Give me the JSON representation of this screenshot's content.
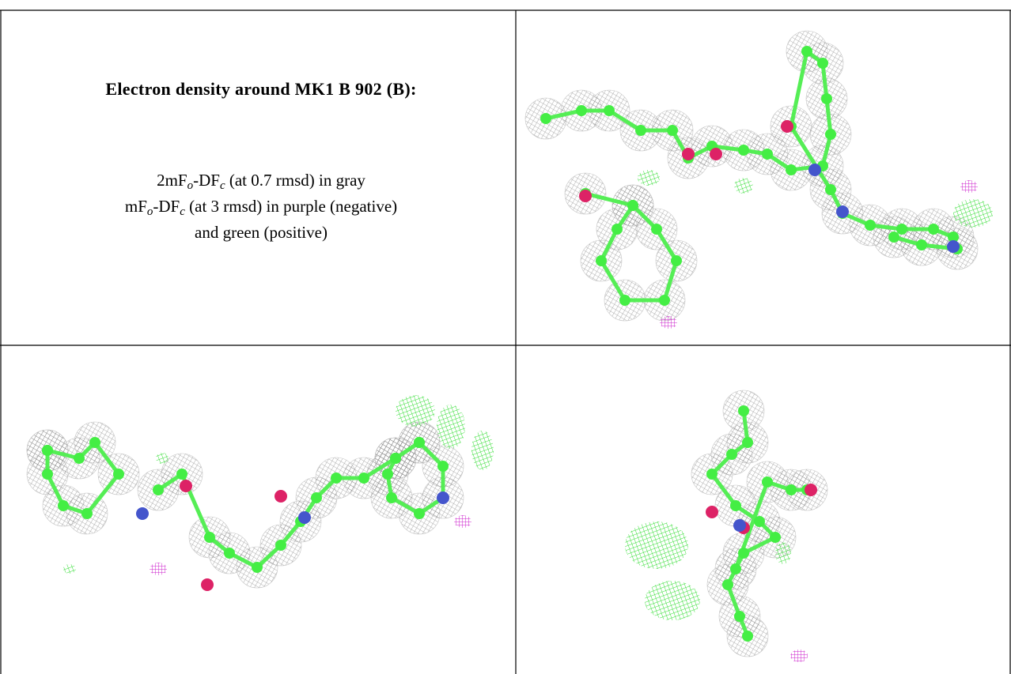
{
  "caption": {
    "title": "Electron density around MK1 B 902 (B):",
    "lines": [
      [
        {
          "text": "2mF"
        },
        {
          "sub": "o"
        },
        {
          "text": "-DF"
        },
        {
          "sub": "c"
        },
        {
          "text": " (at 0.7 rmsd) in gray"
        }
      ],
      [
        {
          "text": "mF"
        },
        {
          "sub": "o"
        },
        {
          "text": "-DF"
        },
        {
          "sub": "c"
        },
        {
          "text": " (at 3 rmsd) in purple (negative)"
        }
      ],
      [
        {
          "text": "and green (positive)"
        }
      ]
    ]
  }
}
